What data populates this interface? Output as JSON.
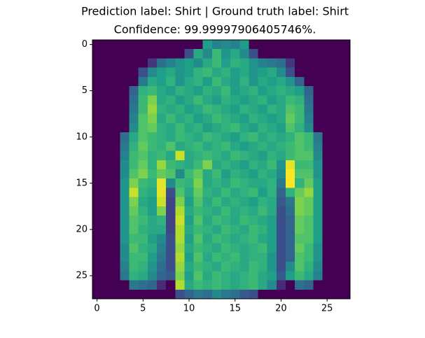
{
  "chart_data": {
    "type": "image",
    "title": "Prediction label: Shirt  |  Ground truth label: Shirt",
    "subtitle": "Confidence: 99.99997906405746%.",
    "colormap": "viridis",
    "xlim": [
      -0.5,
      27.5
    ],
    "ylim": [
      27.5,
      -0.5
    ],
    "xticks": [
      0,
      5,
      10,
      15,
      20,
      25
    ],
    "yticks": [
      0,
      5,
      10,
      15,
      20,
      25
    ],
    "values": [
      [
        0,
        0,
        0,
        0,
        0,
        0,
        0,
        0,
        0,
        0,
        0,
        0,
        140,
        110,
        120,
        110,
        140,
        0,
        0,
        0,
        0,
        0,
        0,
        0,
        0,
        0,
        0,
        0
      ],
      [
        0,
        0,
        0,
        0,
        0,
        0,
        0,
        0,
        0,
        0,
        60,
        150,
        120,
        170,
        130,
        150,
        120,
        60,
        0,
        0,
        0,
        0,
        0,
        0,
        0,
        0,
        0,
        0
      ],
      [
        0,
        0,
        0,
        0,
        0,
        0,
        40,
        90,
        110,
        130,
        140,
        120,
        150,
        170,
        140,
        160,
        150,
        130,
        110,
        100,
        90,
        40,
        0,
        0,
        0,
        0,
        0,
        0
      ],
      [
        0,
        0,
        0,
        0,
        0,
        60,
        120,
        140,
        150,
        130,
        140,
        160,
        170,
        150,
        160,
        140,
        150,
        130,
        140,
        150,
        120,
        60,
        0,
        0,
        0,
        0,
        0,
        0
      ],
      [
        0,
        0,
        0,
        0,
        0,
        100,
        150,
        140,
        160,
        130,
        150,
        160,
        140,
        170,
        150,
        140,
        160,
        130,
        150,
        140,
        150,
        130,
        80,
        0,
        0,
        0,
        0,
        0
      ],
      [
        0,
        0,
        0,
        0,
        80,
        160,
        170,
        150,
        140,
        160,
        150,
        140,
        160,
        150,
        170,
        140,
        150,
        160,
        140,
        150,
        160,
        150,
        140,
        80,
        0,
        0,
        0,
        0
      ],
      [
        0,
        0,
        0,
        0,
        90,
        170,
        200,
        150,
        160,
        140,
        150,
        170,
        150,
        140,
        160,
        150,
        140,
        150,
        160,
        140,
        150,
        170,
        160,
        90,
        0,
        0,
        0,
        0
      ],
      [
        0,
        0,
        0,
        0,
        100,
        170,
        210,
        160,
        150,
        160,
        140,
        150,
        170,
        160,
        150,
        140,
        160,
        150,
        140,
        160,
        150,
        180,
        170,
        100,
        0,
        0,
        0,
        0
      ],
      [
        0,
        0,
        0,
        0,
        110,
        180,
        200,
        150,
        170,
        150,
        160,
        140,
        150,
        170,
        160,
        150,
        140,
        160,
        150,
        140,
        150,
        190,
        170,
        110,
        0,
        0,
        0,
        0
      ],
      [
        0,
        0,
        0,
        0,
        120,
        180,
        190,
        160,
        150,
        170,
        150,
        160,
        140,
        150,
        160,
        170,
        150,
        140,
        160,
        150,
        140,
        180,
        160,
        120,
        0,
        0,
        0,
        0
      ],
      [
        0,
        0,
        0,
        90,
        150,
        180,
        170,
        160,
        150,
        170,
        160,
        150,
        170,
        160,
        150,
        140,
        160,
        170,
        150,
        160,
        150,
        160,
        180,
        170,
        100,
        0,
        0,
        0
      ],
      [
        0,
        0,
        0,
        100,
        160,
        190,
        170,
        160,
        180,
        150,
        160,
        170,
        150,
        160,
        170,
        150,
        140,
        150,
        160,
        150,
        160,
        170,
        180,
        170,
        110,
        0,
        0,
        0
      ],
      [
        0,
        0,
        0,
        110,
        170,
        180,
        160,
        170,
        150,
        230,
        150,
        160,
        170,
        160,
        150,
        170,
        160,
        150,
        140,
        160,
        150,
        170,
        180,
        180,
        120,
        0,
        0,
        0
      ],
      [
        0,
        0,
        0,
        120,
        170,
        190,
        160,
        210,
        170,
        160,
        150,
        170,
        200,
        150,
        160,
        150,
        140,
        160,
        150,
        170,
        130,
        240,
        170,
        170,
        130,
        0,
        0,
        0
      ],
      [
        0,
        0,
        0,
        120,
        180,
        200,
        170,
        190,
        180,
        120,
        170,
        190,
        150,
        170,
        140,
        160,
        150,
        140,
        160,
        150,
        120,
        250,
        180,
        180,
        130,
        0,
        0,
        0
      ],
      [
        0,
        0,
        0,
        130,
        200,
        170,
        160,
        240,
        120,
        170,
        160,
        200,
        150,
        160,
        150,
        170,
        160,
        150,
        150,
        160,
        100,
        250,
        160,
        190,
        140,
        0,
        0,
        0
      ],
      [
        0,
        0,
        0,
        130,
        230,
        160,
        150,
        240,
        60,
        180,
        150,
        190,
        160,
        150,
        170,
        150,
        160,
        170,
        140,
        160,
        80,
        160,
        190,
        210,
        140,
        0,
        0,
        0
      ],
      [
        0,
        0,
        0,
        130,
        200,
        150,
        140,
        230,
        50,
        200,
        140,
        180,
        150,
        170,
        150,
        160,
        150,
        140,
        160,
        150,
        70,
        100,
        200,
        190,
        140,
        0,
        0,
        0
      ],
      [
        0,
        0,
        0,
        130,
        190,
        160,
        140,
        200,
        50,
        220,
        150,
        170,
        160,
        150,
        170,
        150,
        160,
        150,
        170,
        150,
        60,
        90,
        200,
        190,
        140,
        0,
        0,
        0
      ],
      [
        0,
        0,
        0,
        130,
        180,
        170,
        150,
        160,
        50,
        230,
        140,
        180,
        150,
        170,
        160,
        150,
        170,
        160,
        150,
        140,
        60,
        80,
        190,
        180,
        140,
        0,
        0,
        0
      ],
      [
        0,
        0,
        0,
        130,
        180,
        160,
        150,
        150,
        50,
        220,
        150,
        170,
        160,
        150,
        170,
        160,
        150,
        170,
        160,
        140,
        60,
        80,
        190,
        180,
        140,
        0,
        0,
        0
      ],
      [
        0,
        0,
        0,
        130,
        170,
        170,
        140,
        120,
        60,
        220,
        140,
        180,
        150,
        170,
        160,
        150,
        160,
        170,
        150,
        140,
        60,
        80,
        180,
        180,
        140,
        0,
        0,
        0
      ],
      [
        0,
        0,
        0,
        120,
        180,
        160,
        150,
        110,
        60,
        210,
        150,
        170,
        160,
        150,
        170,
        160,
        150,
        160,
        170,
        140,
        60,
        80,
        190,
        170,
        130,
        0,
        0,
        0
      ],
      [
        0,
        0,
        0,
        120,
        170,
        170,
        140,
        100,
        60,
        220,
        140,
        180,
        150,
        170,
        160,
        170,
        150,
        160,
        160,
        130,
        60,
        80,
        180,
        170,
        130,
        0,
        0,
        0
      ],
      [
        0,
        0,
        0,
        110,
        170,
        160,
        130,
        90,
        60,
        210,
        150,
        170,
        160,
        150,
        170,
        160,
        150,
        170,
        160,
        130,
        60,
        120,
        180,
        160,
        120,
        0,
        0,
        0
      ],
      [
        0,
        0,
        0,
        100,
        160,
        150,
        120,
        80,
        70,
        200,
        140,
        180,
        150,
        170,
        160,
        150,
        160,
        170,
        150,
        140,
        70,
        140,
        170,
        150,
        110,
        0,
        0,
        0
      ],
      [
        0,
        0,
        0,
        0,
        100,
        90,
        80,
        30,
        0,
        220,
        150,
        170,
        160,
        170,
        160,
        150,
        160,
        170,
        150,
        120,
        30,
        0,
        90,
        80,
        0,
        0,
        0,
        0
      ],
      [
        0,
        0,
        0,
        0,
        0,
        0,
        0,
        0,
        0,
        60,
        80,
        100,
        90,
        120,
        100,
        90,
        70,
        60,
        0,
        0,
        0,
        0,
        0,
        0,
        0,
        0,
        0,
        0
      ]
    ]
  }
}
